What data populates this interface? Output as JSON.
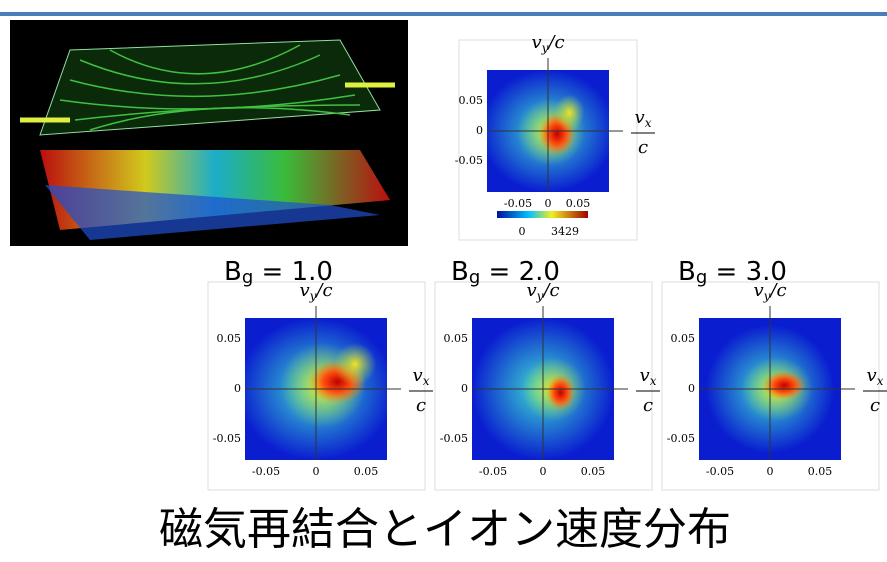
{
  "top_panel": {
    "axis_y": {
      "v": "v",
      "sub": "y",
      "rest": "/c"
    },
    "axis_x": {
      "num": "v",
      "sub": "x",
      "den": "c"
    },
    "yticks": [
      "0.05",
      "0",
      "-0.05"
    ],
    "xticks": [
      "-0.05",
      "0",
      "0.05"
    ],
    "colorbar": [
      "0",
      "3429"
    ]
  },
  "panels": [
    {
      "label": {
        "main": "B",
        "sub": "g",
        "rest": " = 1.0"
      },
      "axis_y": {
        "v": "v",
        "sub": "y",
        "rest": "/c"
      },
      "axis_x": {
        "num": "v",
        "sub": "x",
        "den": "c"
      },
      "yticks": [
        "0.05",
        "0",
        "-0.05"
      ],
      "xticks": [
        "-0.05",
        "0",
        "0.05"
      ]
    },
    {
      "label": {
        "main": "B",
        "sub": "g",
        "rest": " = 2.0"
      },
      "axis_y": {
        "v": "v",
        "sub": "y",
        "rest": "/c"
      },
      "axis_x": {
        "num": "v",
        "sub": "x",
        "den": "c"
      },
      "yticks": [
        "0.05",
        "0",
        "-0.05"
      ],
      "xticks": [
        "-0.05",
        "0",
        "0.05"
      ]
    },
    {
      "label": {
        "main": "B",
        "sub": "g",
        "rest": " = 3.0"
      },
      "axis_y": {
        "v": "v",
        "sub": "y",
        "rest": "/c"
      },
      "axis_x": {
        "num": "v",
        "sub": "x",
        "den": "c"
      },
      "yticks": [
        "0.05",
        "0",
        "-0.05"
      ],
      "xticks": [
        "-0.05",
        "0",
        "0.05"
      ]
    }
  ],
  "title": "磁気再結合とイオン速度分布"
}
